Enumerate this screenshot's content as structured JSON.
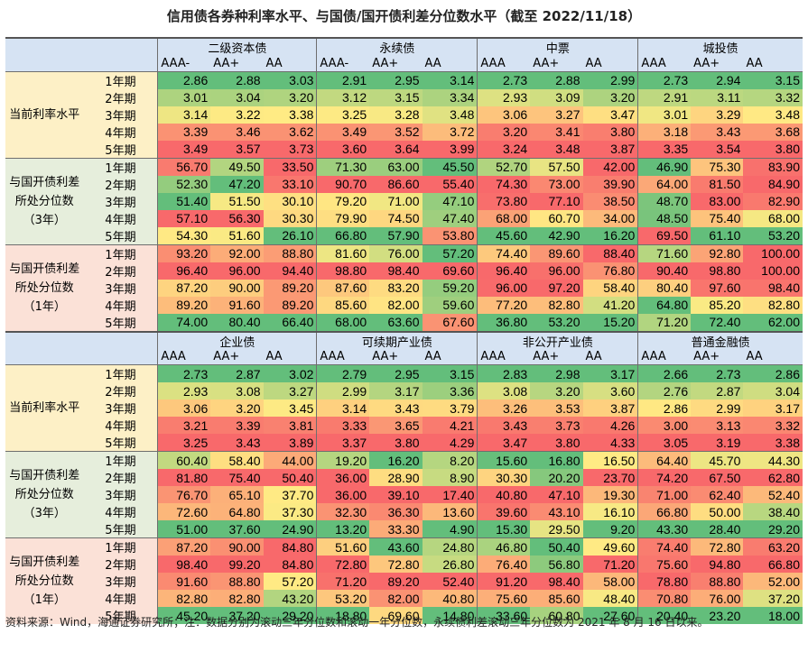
{
  "title": "信用债各券种利率水平、与国债/国开债利差分位数水平（截至 2022/11/18）",
  "source": "资料来源：Wind，海通证券研究所；注：数据分别为滚动三年分位数和滚动一年分位数，永续债利差滚动三年分位数为 2021 年 8 月 16 日以来。",
  "colors": {
    "header_bg": "#d6e3f3",
    "rate_bg": "#fdf0c6",
    "pct3_bg": "#e6eedc",
    "pct1_bg": "#fbe1d7",
    "scale_low": "#63be7b",
    "scale_mid": "#ffeb84",
    "scale_high": "#f8696b"
  },
  "terms": [
    "1年期",
    "2年期",
    "3年期",
    "4年期",
    "5年期"
  ],
  "row_groups": [
    "当前利率水平",
    "与国开债利差所处分位数（3年）",
    "与国开债利差所处分位数（1年）"
  ],
  "sections": [
    {
      "groups": [
        {
          "name": "二级资本债",
          "ratings": [
            "AAA-",
            "AA+",
            "AA"
          ]
        },
        {
          "name": "永续债",
          "ratings": [
            "AAA-",
            "AA+",
            "AA"
          ]
        },
        {
          "name": "中票",
          "ratings": [
            "AAA",
            "AA+",
            "AA"
          ]
        },
        {
          "name": "城投债",
          "ratings": [
            "AAA",
            "AA+",
            "AA"
          ]
        }
      ],
      "blocks": [
        [
          [
            "2.86",
            "2.88",
            "3.03",
            "2.91",
            "2.95",
            "3.14",
            "2.73",
            "2.88",
            "2.99",
            "2.73",
            "2.94",
            "3.15"
          ],
          [
            "3.01",
            "3.04",
            "3.20",
            "3.12",
            "3.15",
            "3.34",
            "2.93",
            "3.09",
            "3.20",
            "2.91",
            "3.11",
            "3.32"
          ],
          [
            "3.14",
            "3.22",
            "3.38",
            "3.25",
            "3.28",
            "3.48",
            "3.06",
            "3.27",
            "3.47",
            "3.01",
            "3.29",
            "3.48"
          ],
          [
            "3.39",
            "3.46",
            "3.62",
            "3.49",
            "3.52",
            "3.72",
            "3.20",
            "3.41",
            "3.80",
            "3.18",
            "3.43",
            "3.68"
          ],
          [
            "3.49",
            "3.57",
            "3.73",
            "3.60",
            "3.64",
            "3.99",
            "3.24",
            "3.48",
            "3.87",
            "3.35",
            "3.54",
            "3.80"
          ]
        ],
        [
          [
            "56.70",
            "49.50",
            "33.50",
            "71.30",
            "63.00",
            "45.50",
            "52.70",
            "57.50",
            "42.00",
            "46.90",
            "75.30",
            "83.90"
          ],
          [
            "52.30",
            "47.20",
            "33.10",
            "90.70",
            "86.60",
            "55.40",
            "74.30",
            "73.00",
            "39.90",
            "64.00",
            "81.50",
            "84.90"
          ],
          [
            "51.40",
            "51.50",
            "30.10",
            "79.20",
            "71.00",
            "47.10",
            "73.80",
            "77.10",
            "38.50",
            "48.70",
            "83.00",
            "82.90"
          ],
          [
            "57.10",
            "56.30",
            "30.30",
            "79.90",
            "74.50",
            "47.40",
            "68.00",
            "60.70",
            "34.00",
            "48.50",
            "75.40",
            "68.00"
          ],
          [
            "54.30",
            "51.60",
            "26.10",
            "66.80",
            "57.90",
            "53.80",
            "45.60",
            "42.90",
            "16.20",
            "69.50",
            "61.10",
            "53.20"
          ]
        ],
        [
          [
            "93.20",
            "92.00",
            "88.80",
            "81.60",
            "76.00",
            "57.20",
            "74.40",
            "89.60",
            "88.40",
            "71.60",
            "92.80",
            "100.00"
          ],
          [
            "96.40",
            "96.00",
            "94.40",
            "98.80",
            "98.40",
            "69.60",
            "96.40",
            "96.00",
            "76.80",
            "90.40",
            "98.80",
            "100.00"
          ],
          [
            "87.20",
            "90.00",
            "89.20",
            "87.60",
            "83.20",
            "59.20",
            "96.00",
            "97.20",
            "58.40",
            "80.40",
            "97.60",
            "98.40"
          ],
          [
            "89.20",
            "91.60",
            "89.20",
            "85.60",
            "82.00",
            "59.60",
            "77.20",
            "82.80",
            "41.20",
            "64.80",
            "85.20",
            "82.80"
          ],
          [
            "74.00",
            "80.40",
            "66.40",
            "68.00",
            "63.60",
            "67.60",
            "36.80",
            "53.20",
            "15.20",
            "71.20",
            "72.40",
            "62.00"
          ]
        ]
      ]
    },
    {
      "groups": [
        {
          "name": "企业债",
          "ratings": [
            "AAA",
            "AA+",
            "AA"
          ]
        },
        {
          "name": "可续期产业债",
          "ratings": [
            "AAA",
            "AA+",
            "AA"
          ]
        },
        {
          "name": "非公开产业债",
          "ratings": [
            "AAA",
            "AA+",
            "AA"
          ]
        },
        {
          "name": "普通金融债",
          "ratings": [
            "AAA",
            "AA+",
            "AA"
          ]
        }
      ],
      "blocks": [
        [
          [
            "2.73",
            "2.87",
            "3.02",
            "2.79",
            "2.95",
            "3.15",
            "2.83",
            "2.98",
            "3.17",
            "2.66",
            "2.73",
            "2.86"
          ],
          [
            "2.93",
            "3.08",
            "3.27",
            "2.99",
            "3.17",
            "3.36",
            "3.08",
            "3.20",
            "3.60",
            "2.76",
            "2.87",
            "3.04"
          ],
          [
            "3.06",
            "3.20",
            "3.45",
            "3.14",
            "3.43",
            "3.79",
            "3.26",
            "3.53",
            "3.87",
            "2.86",
            "2.99",
            "3.17"
          ],
          [
            "3.21",
            "3.39",
            "3.81",
            "3.33",
            "3.65",
            "4.21",
            "3.43",
            "3.73",
            "4.26",
            "3.00",
            "3.13",
            "3.32"
          ],
          [
            "3.25",
            "3.43",
            "3.89",
            "3.37",
            "3.80",
            "4.29",
            "3.47",
            "3.80",
            "4.33",
            "3.05",
            "3.19",
            "3.38"
          ]
        ],
        [
          [
            "60.40",
            "58.40",
            "44.00",
            "19.20",
            "16.20",
            "8.20",
            "15.60",
            "16.80",
            "16.50",
            "64.40",
            "45.70",
            "44.30"
          ],
          [
            "81.80",
            "75.40",
            "50.40",
            "36.00",
            "28.90",
            "8.90",
            "30.30",
            "20.20",
            "23.70",
            "74.20",
            "67.50",
            "62.80"
          ],
          [
            "76.70",
            "65.10",
            "37.70",
            "36.00",
            "39.10",
            "17.40",
            "40.80",
            "47.10",
            "19.30",
            "71.00",
            "62.40",
            "52.40"
          ],
          [
            "72.60",
            "64.80",
            "37.30",
            "32.30",
            "36.30",
            "13.60",
            "39.60",
            "43.10",
            "16.10",
            "66.80",
            "50.00",
            "38.40"
          ],
          [
            "51.00",
            "37.60",
            "24.90",
            "13.20",
            "33.30",
            "4.90",
            "15.30",
            "29.50",
            "9.20",
            "43.30",
            "28.40",
            "29.20"
          ]
        ],
        [
          [
            "87.20",
            "90.00",
            "84.80",
            "51.60",
            "43.60",
            "24.80",
            "46.80",
            "50.40",
            "49.60",
            "74.40",
            "72.80",
            "63.20"
          ],
          [
            "98.40",
            "99.20",
            "84.80",
            "72.80",
            "72.80",
            "26.80",
            "76.40",
            "56.80",
            "71.20",
            "75.60",
            "94.80",
            "66.80"
          ],
          [
            "91.60",
            "88.80",
            "57.20",
            "71.20",
            "89.20",
            "52.40",
            "91.20",
            "98.40",
            "58.00",
            "78.80",
            "88.80",
            "52.00"
          ],
          [
            "82.80",
            "82.80",
            "43.20",
            "53.20",
            "82.00",
            "40.80",
            "75.60",
            "85.60",
            "48.40",
            "70.80",
            "76.00",
            "37.20"
          ],
          [
            "45.20",
            "37.20",
            "29.20",
            "18.80",
            "69.60",
            "14.80",
            "33.60",
            "60.80",
            "27.60",
            "20.40",
            "23.20",
            "18.00"
          ]
        ]
      ]
    }
  ]
}
